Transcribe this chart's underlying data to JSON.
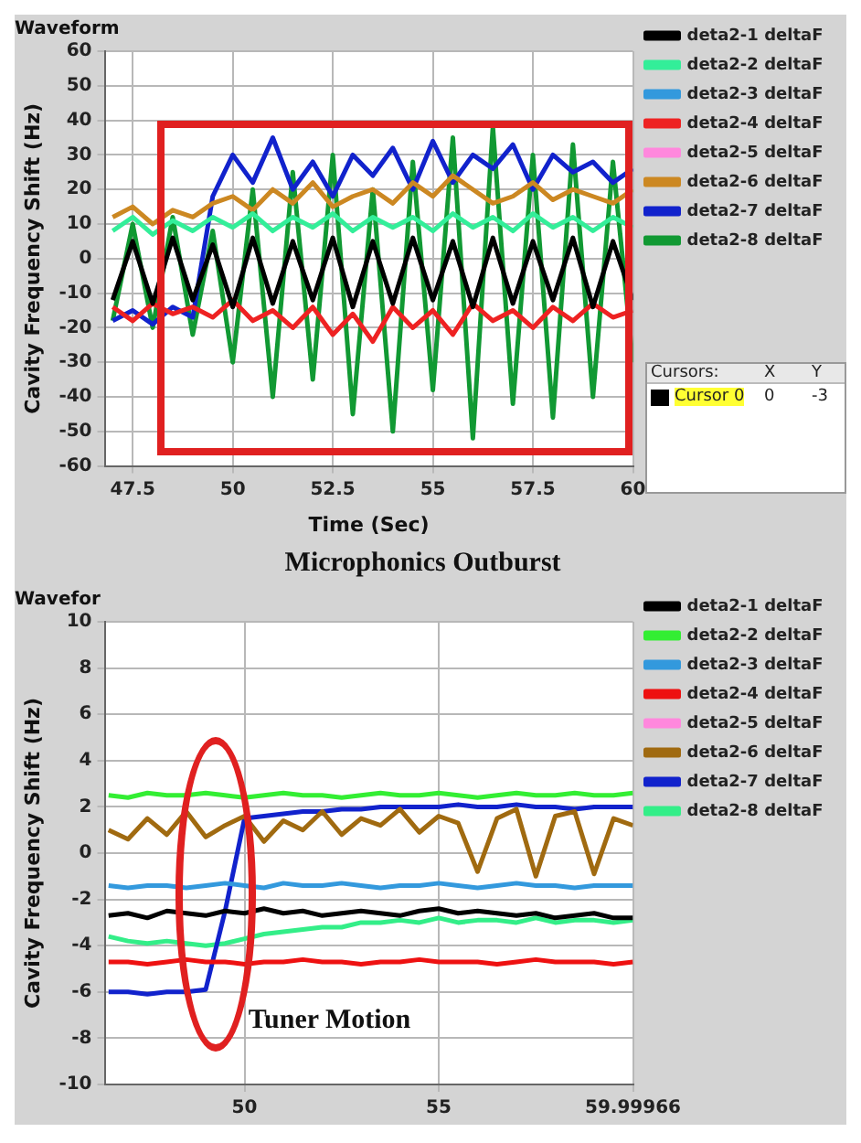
{
  "chart_data": [
    {
      "type": "line",
      "title": "Waveform",
      "xlabel": "Time (Sec)",
      "ylabel": "Cavity Frequency Shift (Hz)",
      "annotations": [
        "Microphonics Outburst",
        "Cursors:",
        "X",
        "Y",
        "Cursor 0",
        "0",
        "-3"
      ],
      "x": [
        47,
        47.5,
        48,
        48.5,
        49,
        49.5,
        50,
        50.5,
        51,
        51.5,
        52,
        52.5,
        53,
        53.5,
        54,
        54.5,
        55,
        55.5,
        56,
        56.5,
        57,
        57.5,
        58,
        58.5,
        59,
        59.5,
        60
      ],
      "xlim": [
        46.8,
        60
      ],
      "xticks": [
        47.5,
        50,
        52.5,
        55,
        57.5,
        60
      ],
      "ylim": [
        -60,
        60
      ],
      "yticks": [
        -60,
        -50,
        -40,
        -30,
        -20,
        -10,
        0,
        10,
        20,
        30,
        40,
        50,
        60
      ],
      "grid": true,
      "legend": "top right",
      "series": [
        {
          "name": "deta2-1 deltaF",
          "color": "#000000",
          "values": [
            -12,
            5,
            -13,
            6,
            -12,
            4,
            -14,
            6,
            -13,
            5,
            -12,
            6,
            -14,
            5,
            -13,
            6,
            -12,
            5,
            -14,
            6,
            -13,
            5,
            -12,
            6,
            -14,
            5,
            -12
          ]
        },
        {
          "name": "deta2-2 deltaF",
          "color": "#33ee99",
          "values": [
            8,
            12,
            7,
            11,
            8,
            12,
            9,
            13,
            8,
            12,
            9,
            13,
            8,
            12,
            9,
            12,
            8,
            13,
            9,
            12,
            8,
            13,
            9,
            12,
            8,
            12,
            9
          ]
        },
        {
          "name": "deta2-3 deltaF",
          "color": "#3399dd",
          "values": [
            null,
            null,
            null,
            null,
            null,
            null,
            null,
            null,
            null,
            null,
            null,
            null,
            null,
            null,
            null,
            null,
            null,
            null,
            null,
            null,
            null,
            null,
            null,
            null,
            null,
            null,
            null
          ]
        },
        {
          "name": "deta2-4 deltaF",
          "color": "#ee2222",
          "values": [
            -14,
            -18,
            -13,
            -16,
            -14,
            -17,
            -12,
            -18,
            -15,
            -20,
            -14,
            -22,
            -16,
            -24,
            -14,
            -20,
            -15,
            -22,
            -13,
            -18,
            -15,
            -20,
            -14,
            -18,
            -13,
            -17,
            -15
          ]
        },
        {
          "name": "deta2-5 deltaF",
          "color": "#ff88dd",
          "values": [
            null,
            null,
            null,
            null,
            null,
            null,
            null,
            null,
            null,
            null,
            null,
            null,
            null,
            null,
            null,
            null,
            null,
            null,
            null,
            null,
            null,
            null,
            null,
            null,
            null,
            null,
            null
          ]
        },
        {
          "name": "deta2-6 deltaF",
          "color": "#cc8822",
          "values": [
            12,
            15,
            10,
            14,
            12,
            16,
            18,
            14,
            20,
            16,
            22,
            15,
            18,
            20,
            16,
            22,
            18,
            24,
            20,
            16,
            18,
            22,
            17,
            20,
            18,
            16,
            20
          ]
        },
        {
          "name": "deta2-7 deltaF",
          "color": "#1122cc",
          "values": [
            -18,
            -15,
            -19,
            -14,
            -17,
            18,
            30,
            22,
            35,
            20,
            28,
            18,
            30,
            24,
            32,
            20,
            34,
            22,
            30,
            26,
            33,
            20,
            30,
            25,
            28,
            22,
            26
          ]
        },
        {
          "name": "deta2-8 deltaF",
          "color": "#119933",
          "values": [
            -18,
            10,
            -20,
            12,
            -22,
            8,
            -30,
            20,
            -40,
            25,
            -35,
            30,
            -45,
            20,
            -50,
            28,
            -38,
            35,
            -52,
            38,
            -42,
            30,
            -46,
            33,
            -40,
            28,
            -30
          ]
        }
      ]
    },
    {
      "type": "line",
      "title": "Wavefor",
      "ylabel": "Cavity Frequency Shift (Hz)",
      "annotations": [
        "Tuner Motion"
      ],
      "x": [
        46.5,
        47,
        47.5,
        48,
        48.5,
        49,
        49.5,
        50,
        50.5,
        51,
        51.5,
        52,
        52.5,
        53,
        53.5,
        54,
        54.5,
        55,
        55.5,
        56,
        56.5,
        57,
        57.5,
        58,
        58.5,
        59,
        59.5,
        59.99966
      ],
      "xlim": [
        46.4,
        59.99966
      ],
      "xticks": [
        50,
        55,
        59.99966
      ],
      "ylim": [
        -10,
        10
      ],
      "yticks": [
        -10,
        -8,
        -6,
        -4,
        -2,
        0,
        2,
        4,
        6,
        8,
        10
      ],
      "grid": true,
      "legend": "top right",
      "series": [
        {
          "name": "deta2-1 deltaF",
          "color": "#000000",
          "values": [
            -2.7,
            -2.6,
            -2.8,
            -2.5,
            -2.6,
            -2.7,
            -2.5,
            -2.6,
            -2.4,
            -2.6,
            -2.5,
            -2.7,
            -2.6,
            -2.5,
            -2.6,
            -2.7,
            -2.5,
            -2.4,
            -2.6,
            -2.5,
            -2.6,
            -2.7,
            -2.6,
            -2.8,
            -2.7,
            -2.6,
            -2.8,
            -2.8
          ]
        },
        {
          "name": "deta2-2 deltaF",
          "color": "#33ee33",
          "values": [
            2.5,
            2.4,
            2.6,
            2.5,
            2.5,
            2.6,
            2.5,
            2.4,
            2.5,
            2.6,
            2.5,
            2.5,
            2.4,
            2.5,
            2.6,
            2.5,
            2.5,
            2.6,
            2.5,
            2.4,
            2.5,
            2.6,
            2.5,
            2.5,
            2.6,
            2.5,
            2.5,
            2.6
          ]
        },
        {
          "name": "deta2-3 deltaF",
          "color": "#3399dd",
          "values": [
            -1.4,
            -1.5,
            -1.4,
            -1.4,
            -1.5,
            -1.4,
            -1.3,
            -1.4,
            -1.5,
            -1.3,
            -1.4,
            -1.4,
            -1.3,
            -1.4,
            -1.5,
            -1.4,
            -1.4,
            -1.3,
            -1.4,
            -1.5,
            -1.4,
            -1.3,
            -1.4,
            -1.4,
            -1.5,
            -1.4,
            -1.4,
            -1.4
          ]
        },
        {
          "name": "deta2-4 deltaF",
          "color": "#ee1111",
          "values": [
            -4.7,
            -4.7,
            -4.8,
            -4.7,
            -4.6,
            -4.7,
            -4.7,
            -4.8,
            -4.7,
            -4.7,
            -4.6,
            -4.7,
            -4.7,
            -4.8,
            -4.7,
            -4.7,
            -4.6,
            -4.7,
            -4.7,
            -4.7,
            -4.8,
            -4.7,
            -4.6,
            -4.7,
            -4.7,
            -4.7,
            -4.8,
            -4.7
          ]
        },
        {
          "name": "deta2-5 deltaF",
          "color": "#ff88dd",
          "values": [
            null,
            null,
            null,
            null,
            null,
            null,
            null,
            null,
            null,
            null,
            null,
            null,
            null,
            null,
            null,
            null,
            null,
            null,
            null,
            null,
            null,
            null,
            null,
            null,
            null,
            null,
            null,
            null
          ]
        },
        {
          "name": "deta2-6 deltaF",
          "color": "#a06a10",
          "values": [
            1.0,
            0.6,
            1.5,
            0.8,
            1.8,
            0.7,
            1.2,
            1.6,
            0.5,
            1.4,
            1.0,
            1.8,
            0.8,
            1.5,
            1.2,
            1.9,
            0.9,
            1.6,
            1.3,
            -0.8,
            1.5,
            1.9,
            -1.0,
            1.6,
            1.8,
            -0.9,
            1.5,
            1.2
          ]
        },
        {
          "name": "deta2-7 deltaF",
          "color": "#1122cc",
          "values": [
            -6,
            -6,
            -6.1,
            -6,
            -6,
            -5.9,
            -2.5,
            1.5,
            1.6,
            1.7,
            1.8,
            1.8,
            1.9,
            1.9,
            2.0,
            2.0,
            2.0,
            2.0,
            2.1,
            2.0,
            2.0,
            2.1,
            2.0,
            2.0,
            1.9,
            2.0,
            2.0,
            2.0
          ]
        },
        {
          "name": "deta2-8 deltaF",
          "color": "#33ee88",
          "values": [
            -3.6,
            -3.8,
            -3.9,
            -3.8,
            -3.9,
            -4.0,
            -3.9,
            -3.7,
            -3.5,
            -3.4,
            -3.3,
            -3.2,
            -3.2,
            -3.0,
            -3.0,
            -2.9,
            -3.0,
            -2.8,
            -3.0,
            -2.9,
            -2.9,
            -3.0,
            -2.8,
            -3.0,
            -2.9,
            -2.9,
            -3.0,
            -2.9
          ]
        }
      ]
    }
  ]
}
